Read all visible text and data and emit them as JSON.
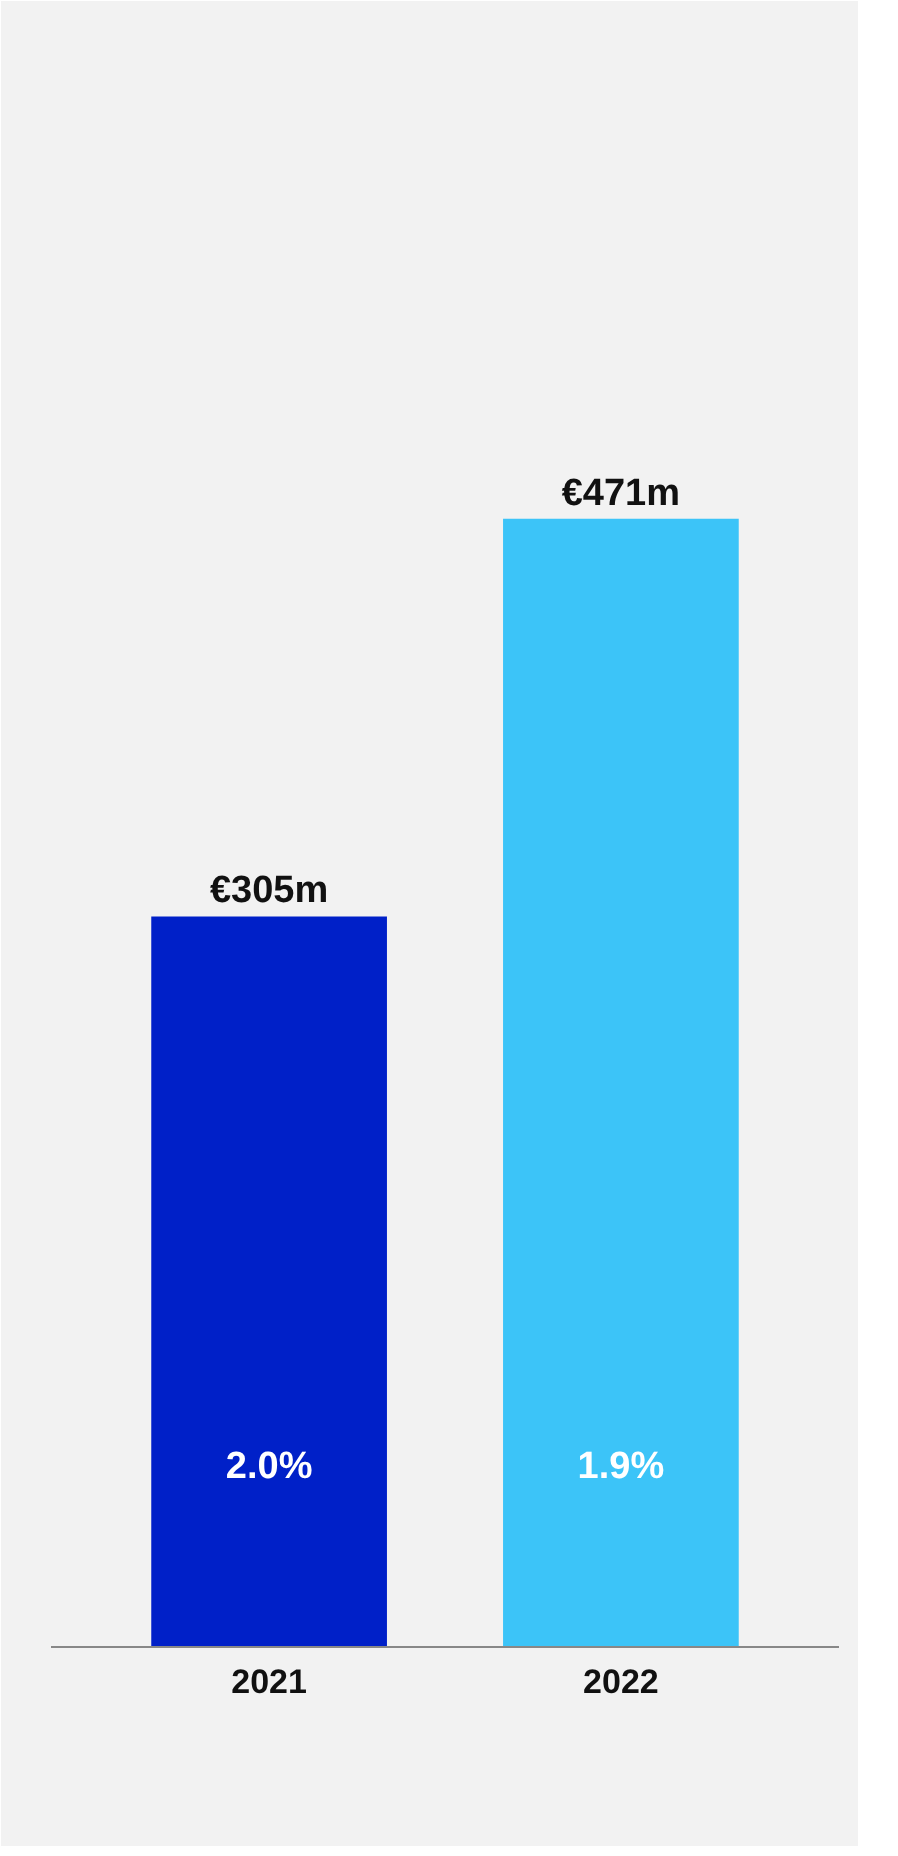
{
  "chart_data": {
    "type": "bar",
    "categories": [
      "2021",
      "2022"
    ],
    "values": [
      305,
      471
    ],
    "colors": [
      "#0020c8",
      "#3cc4f8"
    ],
    "value_labels": [
      "€305m",
      "€471m"
    ],
    "annotations": [
      "2.0%",
      "1.9%"
    ],
    "grid": false,
    "tick_labels": "x"
  }
}
